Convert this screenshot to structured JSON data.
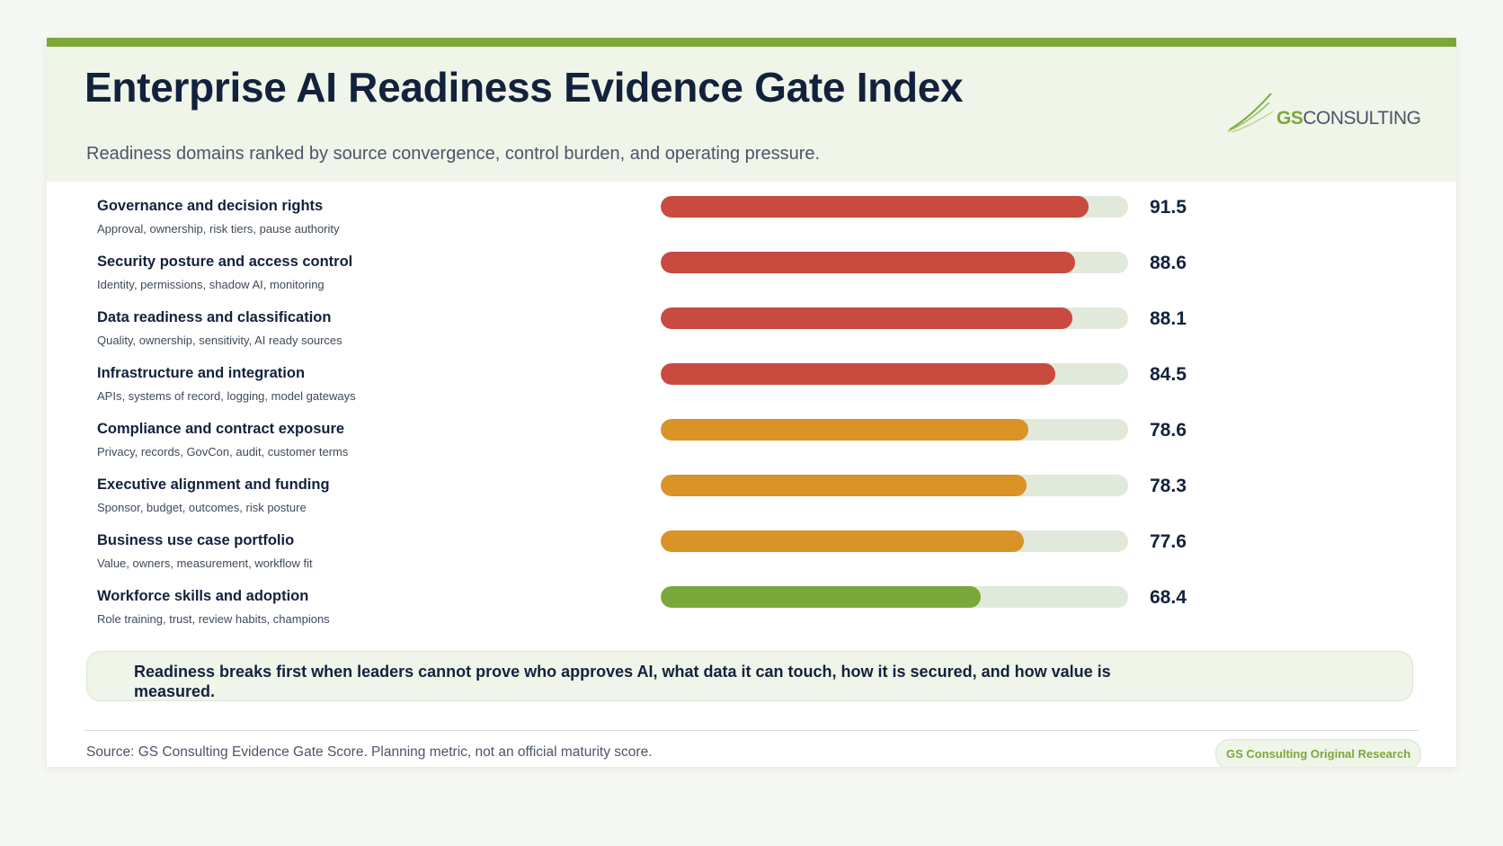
{
  "header": {
    "title": "Enterprise AI Readiness Evidence Gate Index",
    "subtitle": "Readiness domains ranked by source convergence, control burden, and operating pressure."
  },
  "logo": {
    "gs": "GS",
    "rest": "CONSULTING"
  },
  "colors": {
    "accent": "#7aa83a",
    "high": "#c94a3f",
    "medium": "#d99327",
    "low": "#7aa83a",
    "track": "#e1e9da",
    "title": "#12223c"
  },
  "chart_data": {
    "type": "bar",
    "orientation": "horizontal",
    "xlim": [
      0,
      100
    ],
    "grid": false,
    "categories": [
      "Governance and decision rights",
      "Security posture and access control",
      "Data readiness and classification",
      "Infrastructure and integration",
      "Compliance and contract exposure",
      "Executive alignment and funding",
      "Business use case portfolio",
      "Workforce skills and adoption"
    ],
    "descriptions": [
      "Approval, ownership, risk tiers, pause authority",
      "Identity, permissions, shadow AI, monitoring",
      "Quality, ownership, sensitivity, AI ready sources",
      "APIs, systems of record, logging, model gateways",
      "Privacy, records, GovCon, audit, customer terms",
      "Sponsor, budget, outcomes, risk posture",
      "Value, owners, measurement, workflow fit",
      "Role training, trust, review habits, champions"
    ],
    "values": [
      91.5,
      88.6,
      88.1,
      84.5,
      78.6,
      78.3,
      77.6,
      68.4
    ],
    "value_labels": [
      "91.5",
      "88.6",
      "88.1",
      "84.5",
      "78.6",
      "78.3",
      "77.6",
      "68.4"
    ],
    "bar_colors": [
      "#c94a3f",
      "#c94a3f",
      "#c94a3f",
      "#c94a3f",
      "#d99327",
      "#d99327",
      "#d99327",
      "#7aa83a"
    ]
  },
  "callout": {
    "text": "Readiness breaks first when leaders cannot prove who approves AI, what data it can touch, how it is secured, and how value is measured."
  },
  "footer": {
    "source": "Source: GS Consulting Evidence Gate Score. Planning metric, not an official maturity score.",
    "badge": "GS Consulting Original Research"
  }
}
